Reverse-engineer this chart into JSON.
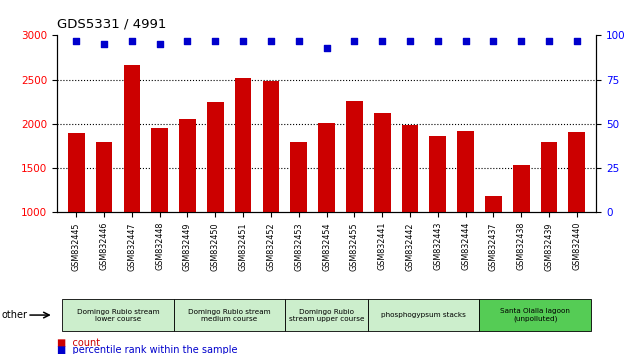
{
  "title": "GDS5331 / 4991",
  "samples": [
    "GSM832445",
    "GSM832446",
    "GSM832447",
    "GSM832448",
    "GSM832449",
    "GSM832450",
    "GSM832451",
    "GSM832452",
    "GSM832453",
    "GSM832454",
    "GSM832455",
    "GSM832441",
    "GSM832442",
    "GSM832443",
    "GSM832444",
    "GSM832437",
    "GSM832438",
    "GSM832439",
    "GSM832440"
  ],
  "counts": [
    1900,
    1790,
    2660,
    1950,
    2060,
    2250,
    2520,
    2480,
    1790,
    2010,
    2260,
    2120,
    1990,
    1860,
    1920,
    1180,
    1540,
    1800,
    1910
  ],
  "percentiles": [
    97,
    95,
    97,
    95,
    97,
    97,
    97,
    97,
    97,
    93,
    97,
    97,
    97,
    97,
    97,
    97,
    97,
    97,
    97
  ],
  "bar_color": "#cc0000",
  "dot_color": "#0000cc",
  "ylim_left": [
    1000,
    3000
  ],
  "ylim_right": [
    0,
    100
  ],
  "yticks_left": [
    1000,
    1500,
    2000,
    2500,
    3000
  ],
  "yticks_right": [
    0,
    25,
    50,
    75,
    100
  ],
  "hgrid_vals": [
    1500,
    2000,
    2500
  ],
  "groups": [
    {
      "label": "Domingo Rubio stream\nlower course",
      "start": 0,
      "end": 4,
      "color": "#cceecc"
    },
    {
      "label": "Domingo Rubio stream\nmedium course",
      "start": 4,
      "end": 8,
      "color": "#cceecc"
    },
    {
      "label": "Domingo Rubio\nstream upper course",
      "start": 8,
      "end": 11,
      "color": "#cceecc"
    },
    {
      "label": "phosphogypsum stacks",
      "start": 11,
      "end": 15,
      "color": "#cceecc"
    },
    {
      "label": "Santa Olalla lagoon\n(unpolluted)",
      "start": 15,
      "end": 19,
      "color": "#55cc55"
    }
  ],
  "other_label": "other",
  "legend_count_label": "count",
  "legend_pct_label": "percentile rank within the sample"
}
